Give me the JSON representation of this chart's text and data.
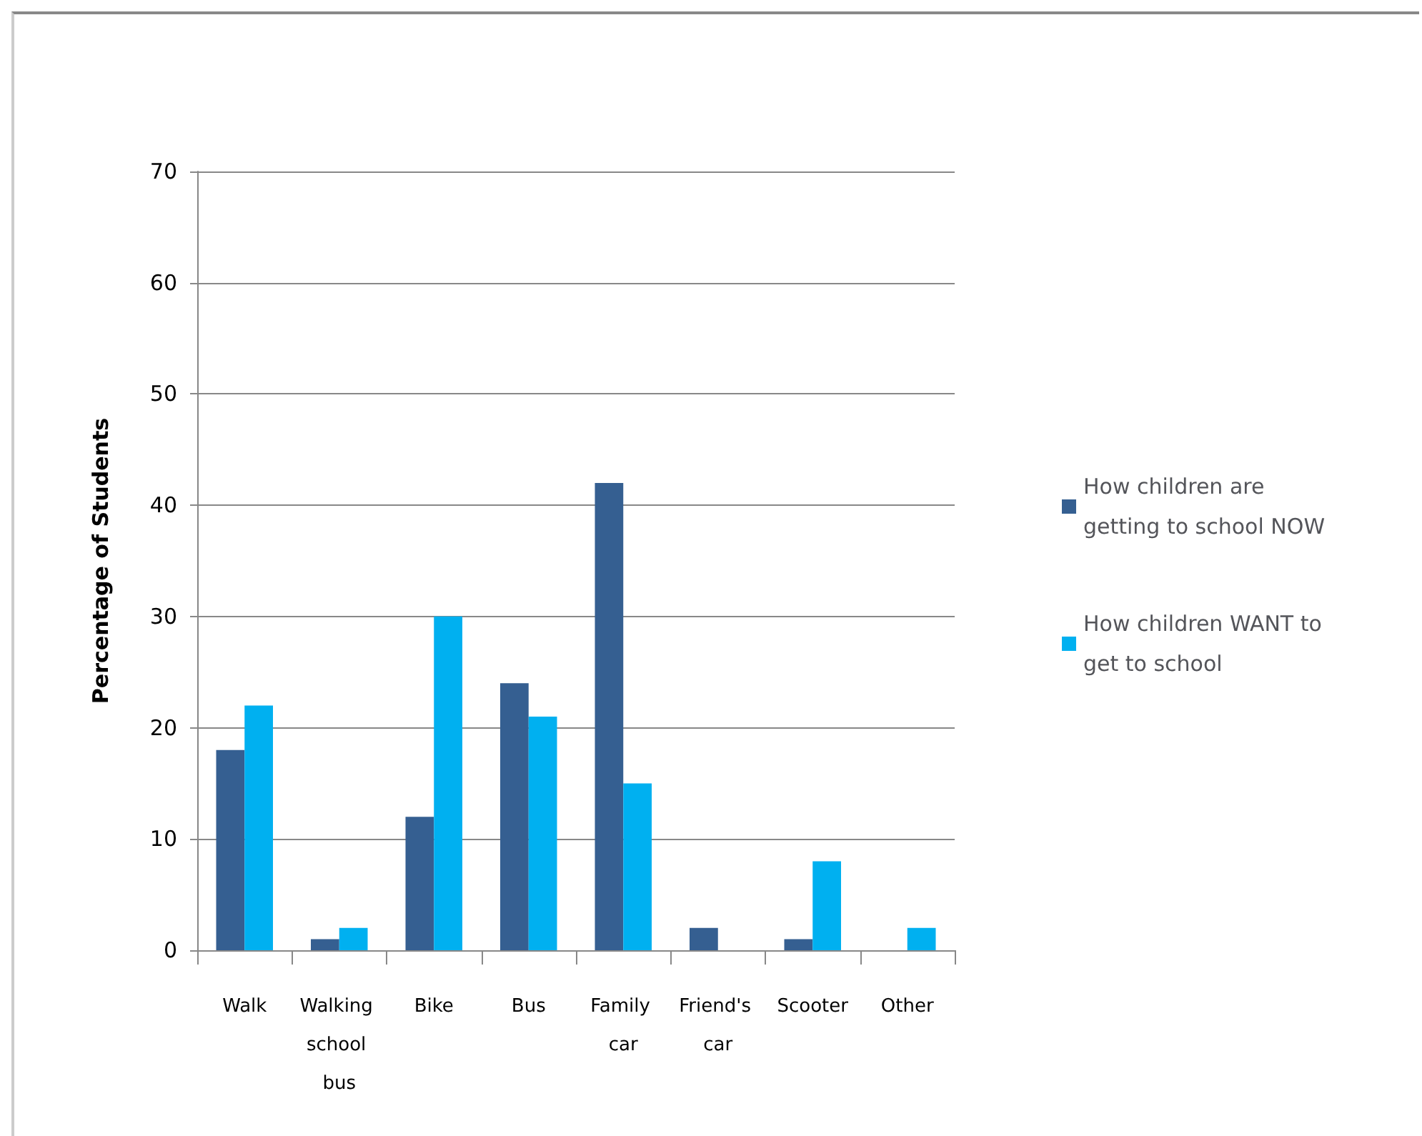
{
  "chart_data": {
    "type": "bar",
    "ylabel": "Percentage of Students",
    "categories": [
      "Walk",
      "Walking school bus",
      "Bike",
      "Bus",
      "Family car",
      "Friend's car",
      "Scooter",
      "Other"
    ],
    "series": [
      {
        "name": "How children are getting to school NOW",
        "color": "#355f91",
        "values": [
          18,
          1,
          12,
          24,
          42,
          2,
          1,
          0
        ]
      },
      {
        "name": "How children WANT to get to school",
        "color": "#00b0f0",
        "values": [
          22,
          2,
          30,
          21,
          15,
          0,
          8,
          2
        ]
      }
    ],
    "ylim": [
      0,
      70
    ],
    "yticks": [
      0,
      10,
      20,
      30,
      40,
      50,
      60,
      70
    ],
    "grid": "y",
    "legend": "right"
  }
}
